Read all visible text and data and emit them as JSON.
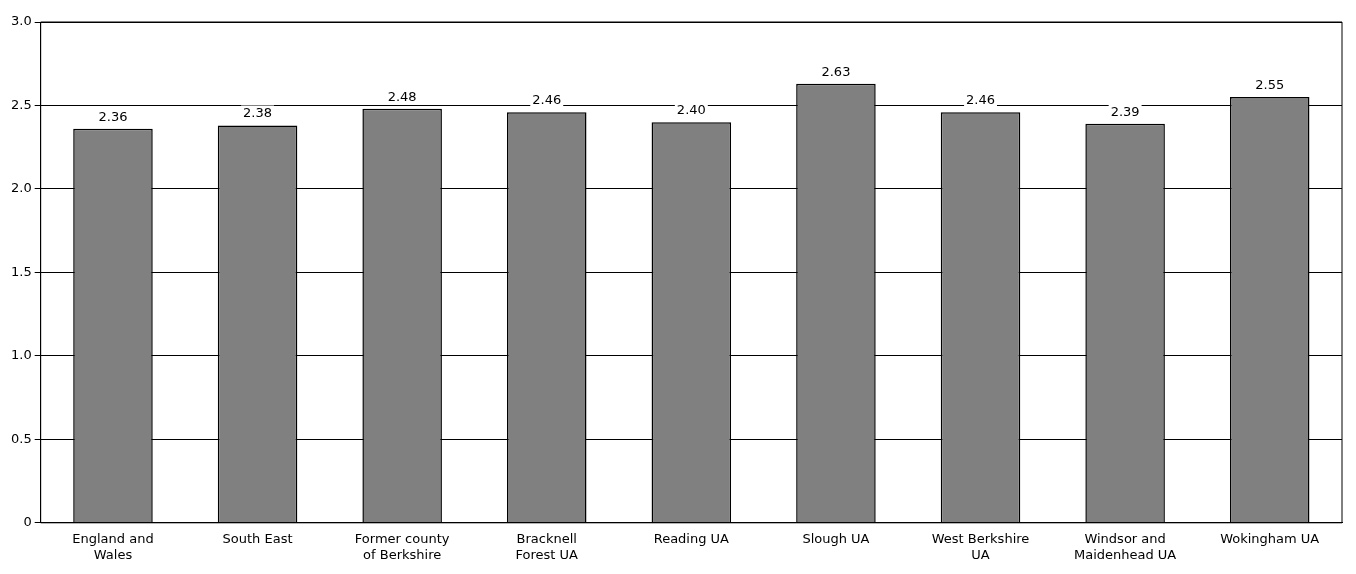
{
  "chart_data": {
    "type": "bar",
    "categories": [
      "England and Wales",
      "South East",
      "Former county of Berkshire",
      "Bracknell Forest UA",
      "Reading UA",
      "Slough UA",
      "West Berkshire UA",
      "Windsor and Maidenhead UA",
      "Wokingham UA"
    ],
    "values": [
      2.36,
      2.38,
      2.48,
      2.46,
      2.4,
      2.63,
      2.46,
      2.39,
      2.55
    ],
    "value_labels": [
      "2.36",
      "2.38",
      "2.48",
      "2.46",
      "2.40",
      "2.63",
      "2.46",
      "2.39",
      "2.55"
    ],
    "color": "#808080",
    "ylim": [
      0,
      3
    ],
    "yticks": [
      0,
      {
        "value": 0.5,
        "label": "0.5"
      },
      {
        "value": 1,
        "label": "1.0"
      },
      {
        "value": 1.5,
        "label": "1.5"
      },
      {
        "value": 2,
        "label": "2.0"
      },
      {
        "value": 2.5,
        "label": "2.5"
      },
      {
        "value": 3,
        "label": "3.0"
      }
    ],
    "grid": "y"
  }
}
